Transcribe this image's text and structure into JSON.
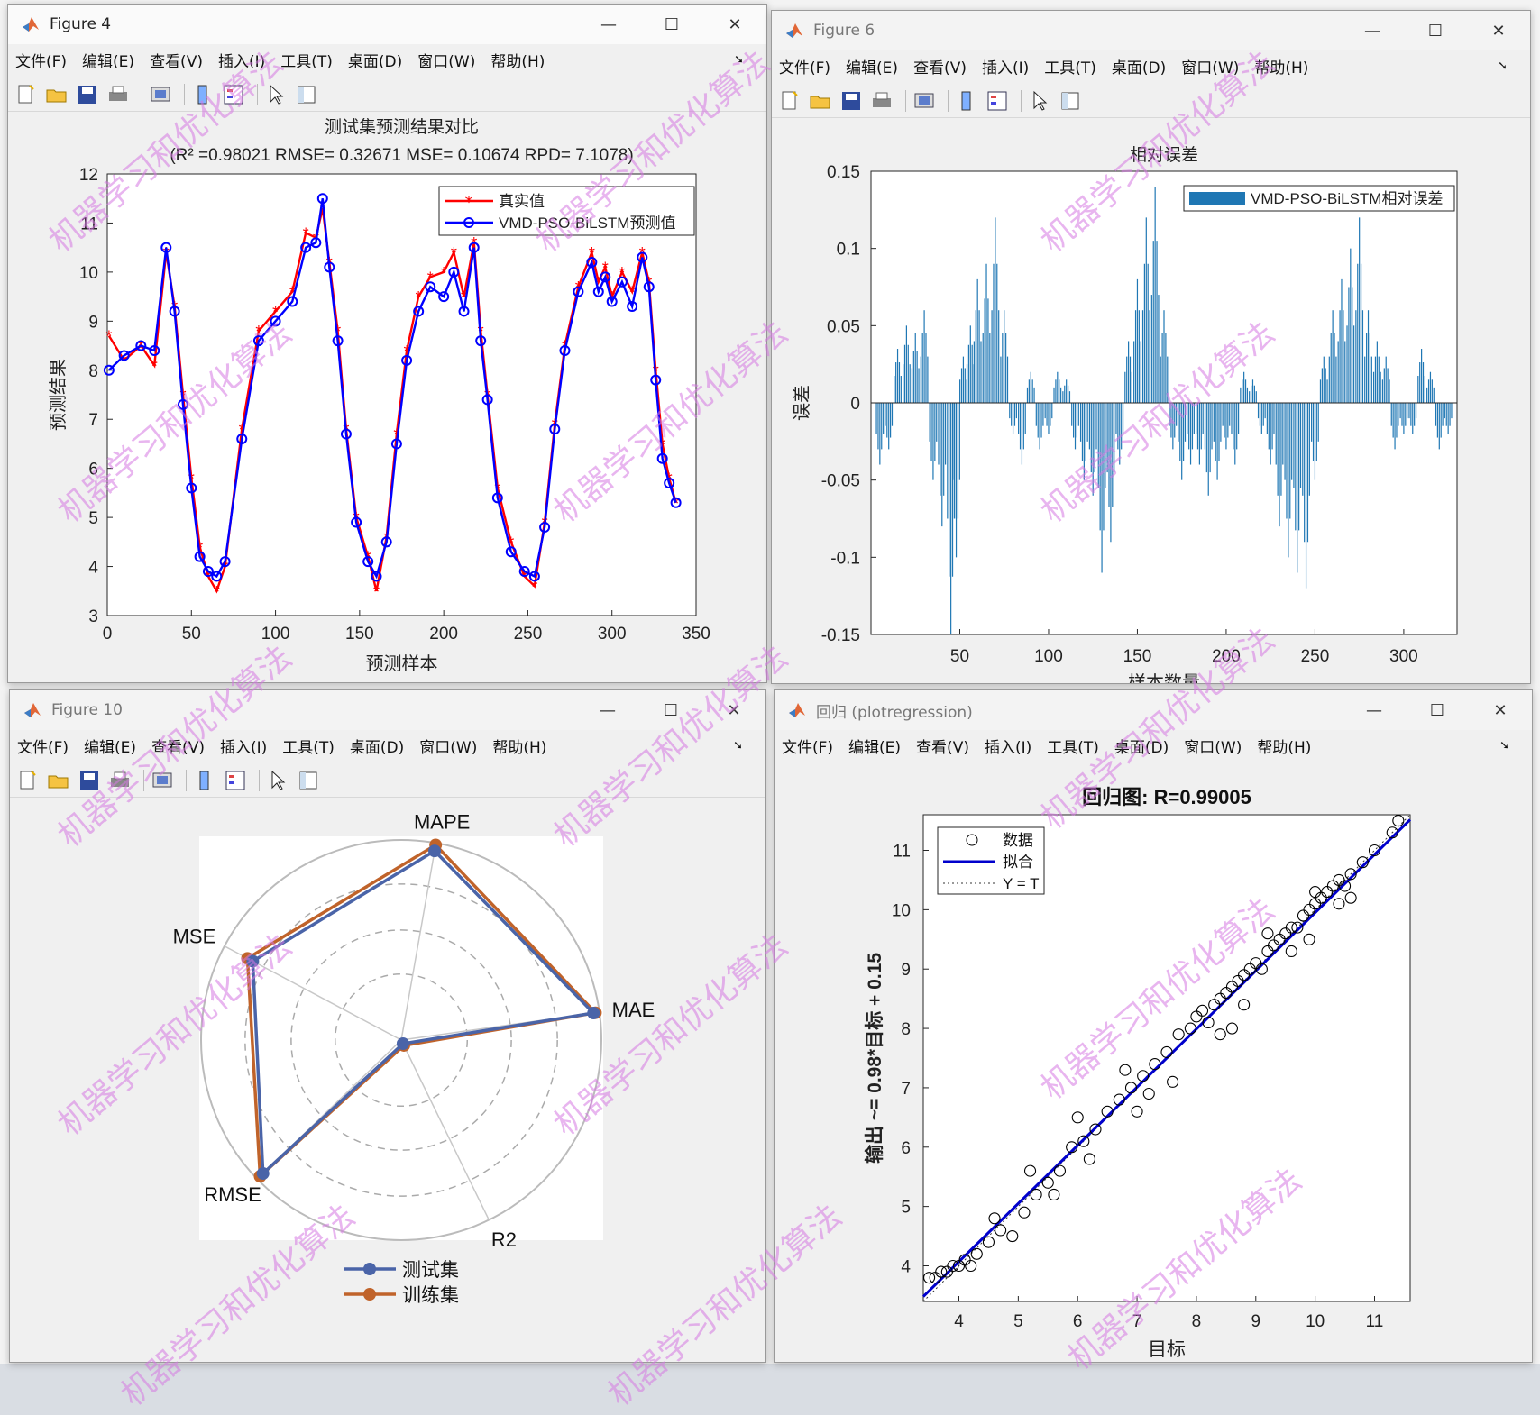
{
  "menu": [
    "文件(F)",
    "编辑(E)",
    "查看(V)",
    "插入(I)",
    "工具(T)",
    "桌面(D)",
    "窗口(W)",
    "帮助(H)"
  ],
  "window_controls": {
    "minimize": "—",
    "maximize": "☐",
    "close": "✕"
  },
  "fig4": {
    "title": "Figure 4",
    "chart_data": {
      "type": "line",
      "title": "测试集预测结果对比",
      "subtitle": "(R² =0.98021 RMSE= 0.32671 MSE= 0.10674 RPD= 7.1078)",
      "xlabel": "预测样本",
      "ylabel": "预测结果",
      "xlim": [
        0,
        350
      ],
      "ylim": [
        3,
        12
      ],
      "xticks": [
        0,
        50,
        100,
        150,
        200,
        250,
        300,
        350
      ],
      "yticks": [
        3,
        4,
        5,
        6,
        7,
        8,
        9,
        10,
        11,
        12
      ],
      "legend_position": "top-right",
      "series": [
        {
          "name": "真实值",
          "color": "#ff0000",
          "marker": "star",
          "x": [
            1,
            10,
            20,
            28,
            35,
            40,
            45,
            50,
            55,
            60,
            65,
            70,
            80,
            90,
            100,
            110,
            118,
            124,
            128,
            132,
            137,
            142,
            148,
            155,
            160,
            166,
            172,
            178,
            185,
            192,
            200,
            206,
            212,
            218,
            222,
            226,
            232,
            240,
            248,
            254,
            260,
            266,
            272,
            280,
            288,
            292,
            296,
            300,
            306,
            312,
            318,
            322,
            326,
            330,
            334,
            338
          ],
          "values": [
            8.7,
            8.2,
            8.5,
            8.1,
            10.4,
            9.3,
            7.5,
            5.8,
            4.4,
            3.8,
            3.5,
            4.0,
            6.8,
            8.8,
            9.2,
            9.6,
            10.8,
            10.7,
            11.3,
            10.2,
            8.8,
            6.8,
            5.0,
            4.2,
            3.5,
            4.6,
            6.7,
            8.4,
            9.5,
            9.9,
            10.0,
            10.4,
            9.5,
            10.6,
            8.8,
            7.5,
            5.6,
            4.5,
            3.8,
            3.6,
            4.9,
            6.9,
            8.5,
            9.7,
            10.4,
            9.8,
            10.1,
            9.5,
            10.0,
            9.6,
            10.4,
            9.8,
            8.0,
            6.5,
            5.8,
            5.3
          ]
        },
        {
          "name": "VMD-PSO-BiLSTM预测值",
          "color": "#0000ff",
          "marker": "circle",
          "x": [
            1,
            10,
            20,
            28,
            35,
            40,
            45,
            50,
            55,
            60,
            65,
            70,
            80,
            90,
            100,
            110,
            118,
            124,
            128,
            132,
            137,
            142,
            148,
            155,
            160,
            166,
            172,
            178,
            185,
            192,
            200,
            206,
            212,
            218,
            222,
            226,
            232,
            240,
            248,
            254,
            260,
            266,
            272,
            280,
            288,
            292,
            296,
            300,
            306,
            312,
            318,
            322,
            326,
            330,
            334,
            338
          ],
          "values": [
            8.0,
            8.3,
            8.5,
            8.4,
            10.5,
            9.2,
            7.3,
            5.6,
            4.2,
            3.9,
            3.8,
            4.1,
            6.6,
            8.6,
            9.0,
            9.4,
            10.5,
            10.6,
            11.5,
            10.1,
            8.6,
            6.7,
            4.9,
            4.1,
            3.8,
            4.5,
            6.5,
            8.2,
            9.2,
            9.7,
            9.5,
            10.0,
            9.2,
            10.5,
            8.6,
            7.4,
            5.4,
            4.3,
            3.9,
            3.8,
            4.8,
            6.8,
            8.4,
            9.6,
            10.2,
            9.6,
            9.9,
            9.4,
            9.8,
            9.3,
            10.3,
            9.7,
            7.8,
            6.2,
            5.7,
            5.3
          ]
        }
      ]
    }
  },
  "fig6": {
    "title": "Figure 6",
    "chart_data": {
      "type": "bar",
      "title": "相对误差",
      "xlabel": "样本数量",
      "ylabel": "误差",
      "xlim": [
        0,
        330
      ],
      "ylim": [
        -0.15,
        0.15
      ],
      "xticks": [
        50,
        100,
        150,
        200,
        250,
        300
      ],
      "yticks": [
        -0.15,
        -0.1,
        -0.05,
        0,
        0.05,
        0.1,
        0.15
      ],
      "legend_position": "top-right",
      "series": [
        {
          "name": "VMD-PSO-BiLSTM相对误差",
          "color": "#1f77b4",
          "x": [
            5,
            10,
            15,
            20,
            25,
            30,
            35,
            40,
            45,
            48,
            52,
            56,
            60,
            65,
            70,
            75,
            80,
            85,
            90,
            95,
            100,
            105,
            110,
            115,
            120,
            125,
            130,
            135,
            140,
            145,
            150,
            155,
            160,
            165,
            170,
            175,
            180,
            185,
            190,
            195,
            200,
            205,
            210,
            215,
            220,
            225,
            230,
            235,
            240,
            245,
            250,
            255,
            260,
            265,
            270,
            275,
            280,
            285,
            290,
            295,
            300,
            305,
            310,
            315,
            320,
            325
          ],
          "values": [
            -0.04,
            -0.03,
            0.035,
            0.05,
            0.045,
            0.06,
            -0.05,
            -0.08,
            -0.15,
            -0.1,
            0.03,
            0.05,
            0.08,
            0.09,
            0.12,
            0.06,
            -0.02,
            -0.04,
            0.02,
            -0.03,
            -0.02,
            0.02,
            0.015,
            -0.03,
            -0.05,
            -0.06,
            -0.11,
            -0.09,
            -0.04,
            0.04,
            0.08,
            0.12,
            0.14,
            0.06,
            -0.03,
            -0.05,
            -0.04,
            -0.04,
            -0.06,
            -0.05,
            -0.03,
            -0.04,
            0.02,
            0.015,
            -0.02,
            -0.04,
            -0.08,
            -0.1,
            -0.11,
            -0.12,
            -0.05,
            0.03,
            0.06,
            0.08,
            0.1,
            0.12,
            0.06,
            0.04,
            0.03,
            -0.03,
            -0.02,
            -0.02,
            0.035,
            0.02,
            -0.03,
            -0.02
          ]
        }
      ]
    }
  },
  "fig10": {
    "title": "Figure 10",
    "chart_data": {
      "type": "radar",
      "axes": [
        "MAPE",
        "MAE",
        "R2",
        "RMSE",
        "MSE"
      ],
      "series": [
        {
          "name": "测试集",
          "color": "#4a64a8",
          "values": [
            0.96,
            0.97,
            0.02,
            0.96,
            0.84
          ]
        },
        {
          "name": "训练集",
          "color": "#c0632a",
          "values": [
            0.99,
            0.98,
            0.03,
            0.98,
            0.87
          ]
        }
      ],
      "legend_position": "bottom"
    }
  },
  "fig_reg": {
    "title": "回归 (plotregression)",
    "chart_data": {
      "type": "scatter",
      "title": "回归图: R=0.99005",
      "xlabel": "目标",
      "ylabel": "输出 ~= 0.98*目标 + 0.15",
      "xlim": [
        3.4,
        11.6
      ],
      "ylim": [
        3.4,
        11.6
      ],
      "xticks": [
        4,
        5,
        6,
        7,
        8,
        9,
        10,
        11
      ],
      "yticks": [
        4,
        5,
        6,
        7,
        8,
        9,
        10,
        11
      ],
      "legend_position": "top-left",
      "legend": [
        "数据",
        "拟合",
        "Y = T"
      ],
      "fit": {
        "slope": 0.98,
        "intercept": 0.15,
        "color": "#0000cc"
      },
      "x": [
        3.5,
        3.6,
        3.7,
        3.8,
        3.9,
        4.0,
        4.1,
        4.3,
        4.5,
        4.7,
        4.9,
        5.1,
        5.3,
        5.5,
        5.7,
        5.9,
        6.1,
        6.3,
        6.5,
        6.7,
        6.9,
        7.1,
        7.3,
        7.5,
        7.7,
        7.9,
        8.0,
        8.1,
        8.2,
        8.3,
        8.4,
        8.5,
        8.6,
        8.7,
        8.8,
        8.9,
        9.0,
        9.1,
        9.2,
        9.3,
        9.4,
        9.5,
        9.6,
        9.7,
        9.8,
        9.9,
        10.0,
        10.1,
        10.2,
        10.3,
        10.4,
        10.5,
        10.6,
        10.8,
        11.0,
        11.3,
        11.4,
        4.6,
        5.2,
        6.0,
        6.8,
        7.6,
        8.4,
        9.2,
        10.0,
        4.2,
        5.6,
        7.2,
        8.8,
        10.4,
        9.6,
        8.6,
        9.9,
        10.6,
        7.0,
        6.2
      ],
      "y": [
        3.8,
        3.8,
        3.9,
        3.9,
        4.0,
        4.0,
        4.1,
        4.2,
        4.4,
        4.6,
        4.5,
        4.9,
        5.2,
        5.4,
        5.6,
        6.0,
        6.1,
        6.3,
        6.6,
        6.8,
        7.0,
        7.2,
        7.4,
        7.6,
        7.9,
        8.0,
        8.2,
        8.3,
        8.1,
        8.4,
        8.5,
        8.6,
        8.7,
        8.8,
        8.9,
        9.0,
        9.1,
        9.0,
        9.3,
        9.4,
        9.5,
        9.6,
        9.7,
        9.7,
        9.9,
        10.0,
        10.1,
        10.2,
        10.3,
        10.4,
        10.5,
        10.4,
        10.6,
        10.8,
        11.0,
        11.3,
        11.5,
        4.8,
        5.6,
        6.5,
        7.3,
        7.1,
        7.9,
        9.6,
        10.3,
        4.0,
        5.2,
        6.9,
        8.4,
        10.1,
        9.3,
        8.0,
        9.5,
        10.2,
        6.6,
        5.8
      ],
      "color": "#000000"
    }
  },
  "watermark": "机器学习和优化算法"
}
